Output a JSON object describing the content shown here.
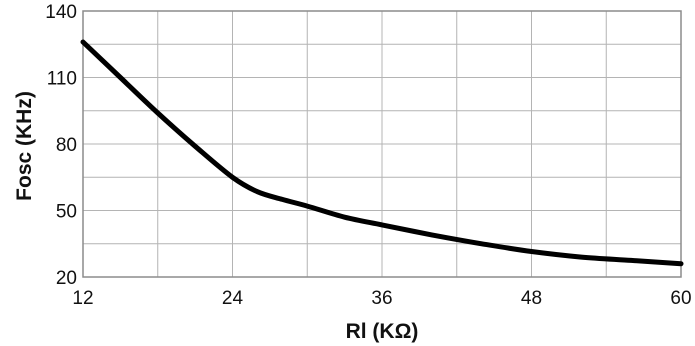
{
  "chart_data": {
    "type": "line",
    "title": "",
    "xlabel": "Rl (KΩ)",
    "ylabel": "Fosc (KHz)",
    "xlim": [
      12,
      60
    ],
    "ylim": [
      20,
      140
    ],
    "x_ticks": [
      12,
      24,
      36,
      48,
      60
    ],
    "y_ticks": [
      20,
      50,
      80,
      110,
      140
    ],
    "x_minor_step": 6,
    "y_minor_step": 15,
    "grid": true,
    "colors": {
      "line": "#000000",
      "grid": "#b4b4b4",
      "frame": "#8c8c8c"
    },
    "series": [
      {
        "x": [
          12,
          15,
          18,
          21,
          24,
          26,
          28,
          30,
          33,
          36,
          40,
          44,
          48,
          52,
          56,
          60
        ],
        "y": [
          126,
          110,
          94,
          79,
          65,
          58.5,
          55,
          52,
          47,
          43.5,
          39,
          35,
          31.5,
          29,
          27.5,
          26
        ]
      }
    ]
  }
}
